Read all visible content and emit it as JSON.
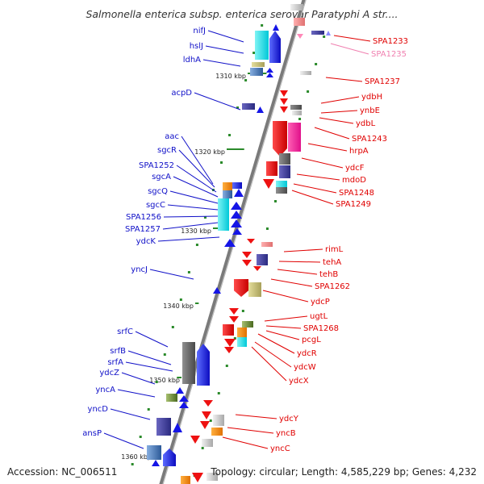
{
  "title": "Salmonella enterica subsp. enterica serovar Paratyphi A str....",
  "footer": {
    "accession": "Accession: NC_006511",
    "summary": "Topology: circular; Length: 4,585,229 bp; Genes: 4,232"
  },
  "colors": {
    "left_label": "#1010c8",
    "right_label": "#e00000",
    "faded_label": "#f080b0",
    "forward": "#1515e6",
    "reverse": "#ee1111",
    "backbone": "#7a7a7a",
    "tick_mark": "#2a8a2a"
  },
  "ticks": [
    {
      "label": "1310 kbp"
    },
    {
      "label": "1320 kbp"
    },
    {
      "label": "1330 kbp"
    },
    {
      "label": "1340 kbp"
    },
    {
      "label": "1350 kbp"
    },
    {
      "label": "1360 kbp"
    }
  ],
  "left_labels": [
    {
      "text": "nifJ"
    },
    {
      "text": "hslJ"
    },
    {
      "text": "ldhA"
    },
    {
      "text": "acpD"
    },
    {
      "text": "aac"
    },
    {
      "text": "sgcR"
    },
    {
      "text": "SPA1252"
    },
    {
      "text": "sgcA"
    },
    {
      "text": "sgcQ"
    },
    {
      "text": "sgcC"
    },
    {
      "text": "SPA1256"
    },
    {
      "text": "SPA1257"
    },
    {
      "text": "ydcK"
    },
    {
      "text": "yncJ"
    },
    {
      "text": "srfC"
    },
    {
      "text": "srfB"
    },
    {
      "text": "srfA"
    },
    {
      "text": "ydcZ"
    },
    {
      "text": "yncA"
    },
    {
      "text": "yncD"
    },
    {
      "text": "ansP"
    }
  ],
  "right_labels": [
    {
      "text": "SPA1233"
    },
    {
      "text": "SPA1235",
      "faded": true
    },
    {
      "text": "SPA1237"
    },
    {
      "text": "ydbH"
    },
    {
      "text": "ynbE"
    },
    {
      "text": "ydbL"
    },
    {
      "text": "SPA1243"
    },
    {
      "text": "hrpA"
    },
    {
      "text": "ydcF"
    },
    {
      "text": "mdoD"
    },
    {
      "text": "SPA1248"
    },
    {
      "text": "SPA1249"
    },
    {
      "text": "rimL"
    },
    {
      "text": "tehA"
    },
    {
      "text": "tehB"
    },
    {
      "text": "SPA1262"
    },
    {
      "text": "ydcP"
    },
    {
      "text": "ugtL"
    },
    {
      "text": "SPA1268"
    },
    {
      "text": "pcgL"
    },
    {
      "text": "ydcR"
    },
    {
      "text": "ydcW"
    },
    {
      "text": "ydcX"
    },
    {
      "text": "ydcY"
    },
    {
      "text": "yncB"
    },
    {
      "text": "yncC"
    }
  ]
}
